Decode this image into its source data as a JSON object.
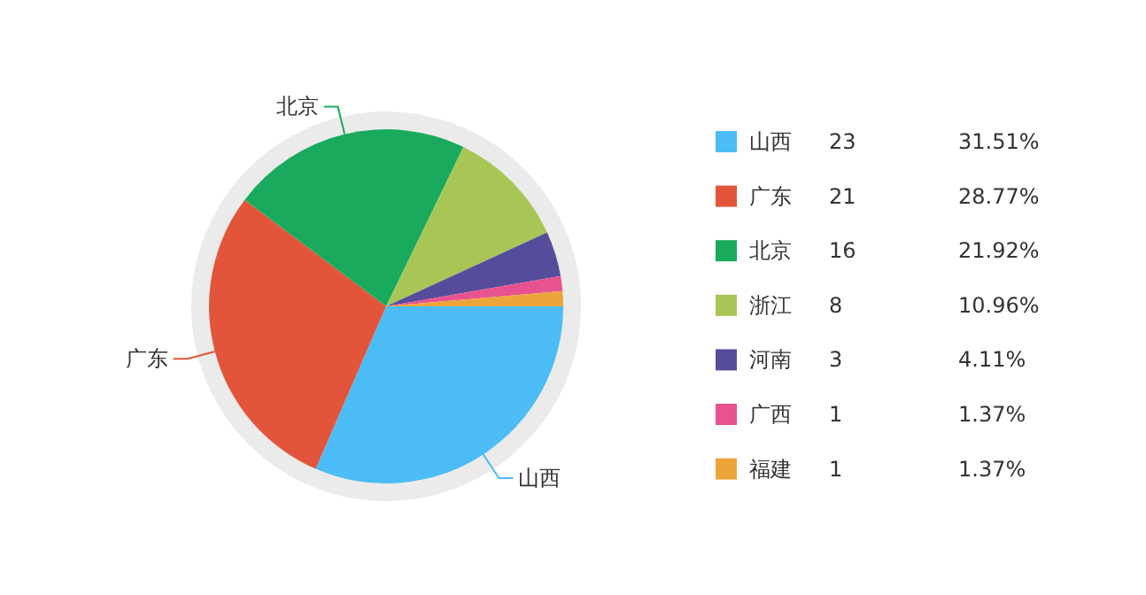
{
  "chart_data": {
    "type": "pie",
    "categories": [
      "山西",
      "广东",
      "北京",
      "浙江",
      "河南",
      "广西",
      "福建"
    ],
    "values": [
      31.51,
      28.77,
      21.92,
      10.96,
      4.11,
      1.37,
      1.37
    ],
    "colors": [
      "#4bbcf5",
      "#e2553a",
      "#1aaa5e",
      "#a8c656",
      "#564c9c",
      "#e8528f",
      "#eca53a"
    ],
    "value_labels": [
      "31.51%",
      "28.77%",
      "21.92%",
      "10.96%",
      "4.11%",
      "1.37%",
      "1.37%"
    ],
    "legend": "right",
    "annotations": [
      {
        "text": "山西",
        "x": "山西"
      },
      {
        "text": "广东",
        "x": "广东"
      },
      {
        "text": "北京",
        "x": "北京"
      },
      "23",
      "21",
      "16",
      "8",
      "3",
      "1",
      "1"
    ]
  }
}
